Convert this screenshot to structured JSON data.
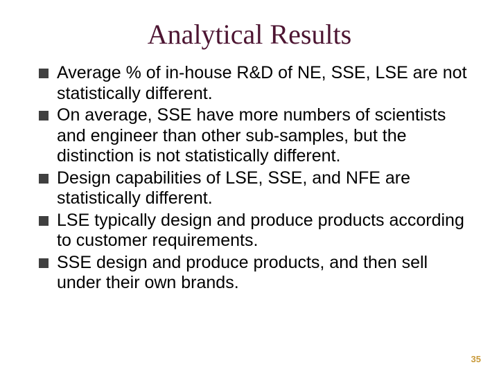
{
  "slide": {
    "title": "Analytical Results",
    "title_color": "#4d1532",
    "title_font": "Times New Roman",
    "title_fontsize": 40,
    "bullet_marker_color": "#404040",
    "bullet_marker_size": 14,
    "body_font": "Arial",
    "body_fontsize": 25,
    "body_color": "#000000",
    "background_color": "#ffffff",
    "bullets": [
      "Average % of in-house R&D of NE, SSE, LSE are not statistically different.",
      "On average, SSE have more numbers of scientists and engineer than other sub-samples, but the distinction is not statistically different.",
      "Design capabilities of LSE, SSE, and NFE are statistically different.",
      "LSE typically design and produce products according to customer requirements.",
      "SSE design and produce products, and then sell under their own brands."
    ],
    "page_number": "35",
    "page_number_color": "#c99a3a",
    "page_number_fontsize": 13
  }
}
